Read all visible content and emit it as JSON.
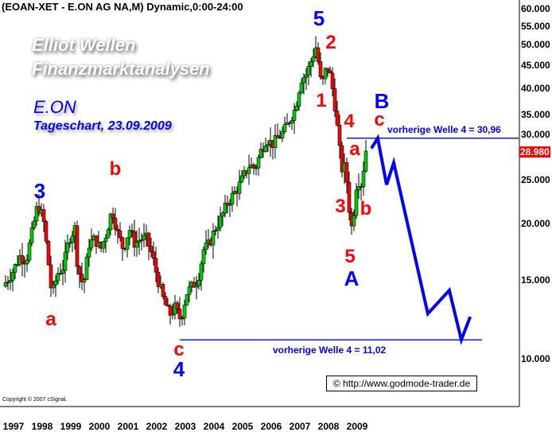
{
  "header": {
    "title": "(EOAN-XET - E.ON AG NA,M) Dynamic,0:00-24:00"
  },
  "watermark": {
    "line1": "Elliot Wellen",
    "line2": "Finanzmarktanalysen"
  },
  "subtitle": {
    "name": "E.ON",
    "chart": "Tageschart, 23.09.2009"
  },
  "colors": {
    "up": "#00cc00",
    "down": "#ff0000",
    "forecast": "#0000ff",
    "primary_labels": "#0000ff",
    "secondary_labels": "#ff0000",
    "last_price_bg": "#ff0000"
  },
  "chart_data": {
    "type": "candlestick",
    "yscale": "log",
    "ylim": [
      8.5,
      62
    ],
    "xlim": [
      1997.0,
      2015.0
    ],
    "yticks": [
      "60.000",
      "55.000",
      "50.000",
      "45.000",
      "40.000",
      "35.000",
      "30.000",
      "25.000",
      "20.000",
      "15.000",
      "10.000"
    ],
    "ytick_values": [
      60,
      55,
      50,
      45,
      40,
      35,
      30,
      25,
      20,
      15,
      10
    ],
    "xticks": [
      "1997",
      "1998",
      "1999",
      "2000",
      "2001",
      "2002",
      "2003",
      "2004",
      "2005",
      "2006",
      "2007",
      "2008",
      "2009"
    ],
    "last_price": "28.980",
    "price": {
      "t": [
        1997.0,
        1997.3,
        1997.6,
        1997.8,
        1998.0,
        1998.2,
        1998.4,
        1998.55,
        1998.7,
        1998.9,
        1999.1,
        1999.3,
        1999.5,
        1999.6,
        1999.8,
        2000.0,
        2000.2,
        2000.4,
        2000.6,
        2000.8,
        2001.0,
        2001.2,
        2001.4,
        2001.6,
        2001.8,
        2002.0,
        2002.2,
        2002.4,
        2002.6,
        2002.8,
        2003.0,
        2003.2,
        2003.4,
        2003.6,
        2003.8,
        2004.0,
        2004.2,
        2004.4,
        2004.6,
        2004.8,
        2005.0,
        2005.2,
        2005.4,
        2005.6,
        2005.8,
        2006.0,
        2006.2,
        2006.4,
        2006.6,
        2006.8,
        2007.0,
        2007.2,
        2007.4,
        2007.6,
        2007.8,
        2007.95,
        2008.05,
        2008.15,
        2008.3,
        2008.45,
        2008.6,
        2008.75,
        2008.85,
        2008.95,
        2009.1,
        2009.2,
        2009.3,
        2009.4,
        2009.5,
        2009.6,
        2009.7
      ],
      "close": [
        14.5,
        15.5,
        17,
        16.5,
        19,
        22,
        20.5,
        17,
        13.8,
        15.5,
        16,
        18.5,
        19.5,
        16,
        14.5,
        18,
        18.5,
        17.5,
        19,
        21.5,
        19,
        17.5,
        19.5,
        18,
        18.5,
        18.5,
        17,
        15,
        13.5,
        12.5,
        13,
        12.2,
        14,
        14.5,
        15,
        17.5,
        18,
        19.5,
        20.5,
        22,
        23,
        24,
        25.5,
        27,
        26.5,
        29,
        31,
        30,
        31,
        32,
        34,
        36,
        42,
        43,
        47,
        50,
        42,
        41,
        45,
        42,
        36,
        29,
        26,
        27,
        21,
        19,
        24,
        25,
        24.5,
        27,
        28.98
      ]
    },
    "forecast": {
      "t": [
        2009.86,
        2010.08,
        2010.39,
        2010.64,
        2011.83,
        2012.58,
        2013.0,
        2013.31
      ],
      "price": [
        29.4,
        30.96,
        24.4,
        27.3,
        12.6,
        14.2,
        11.02,
        12.4
      ]
    },
    "levels": [
      {
        "label": "vorherige Welle 4 = 30,96",
        "value": 30.96,
        "from": 2009.0,
        "to": 2015.0
      },
      {
        "label": "vorherige Welle 4 = 11,02",
        "value": 11.02,
        "from": 2003.17,
        "to": 2013.72
      }
    ],
    "wave_labels": [
      "3",
      "a",
      "b",
      "c",
      "4",
      "5",
      "2",
      "1",
      "4",
      "a",
      "3",
      "b",
      "5",
      "A",
      "B",
      "c"
    ]
  },
  "footer": {
    "copyright": "Copyright © 2007 cSignal.",
    "source": "© http://www.godmode-trader.de"
  }
}
